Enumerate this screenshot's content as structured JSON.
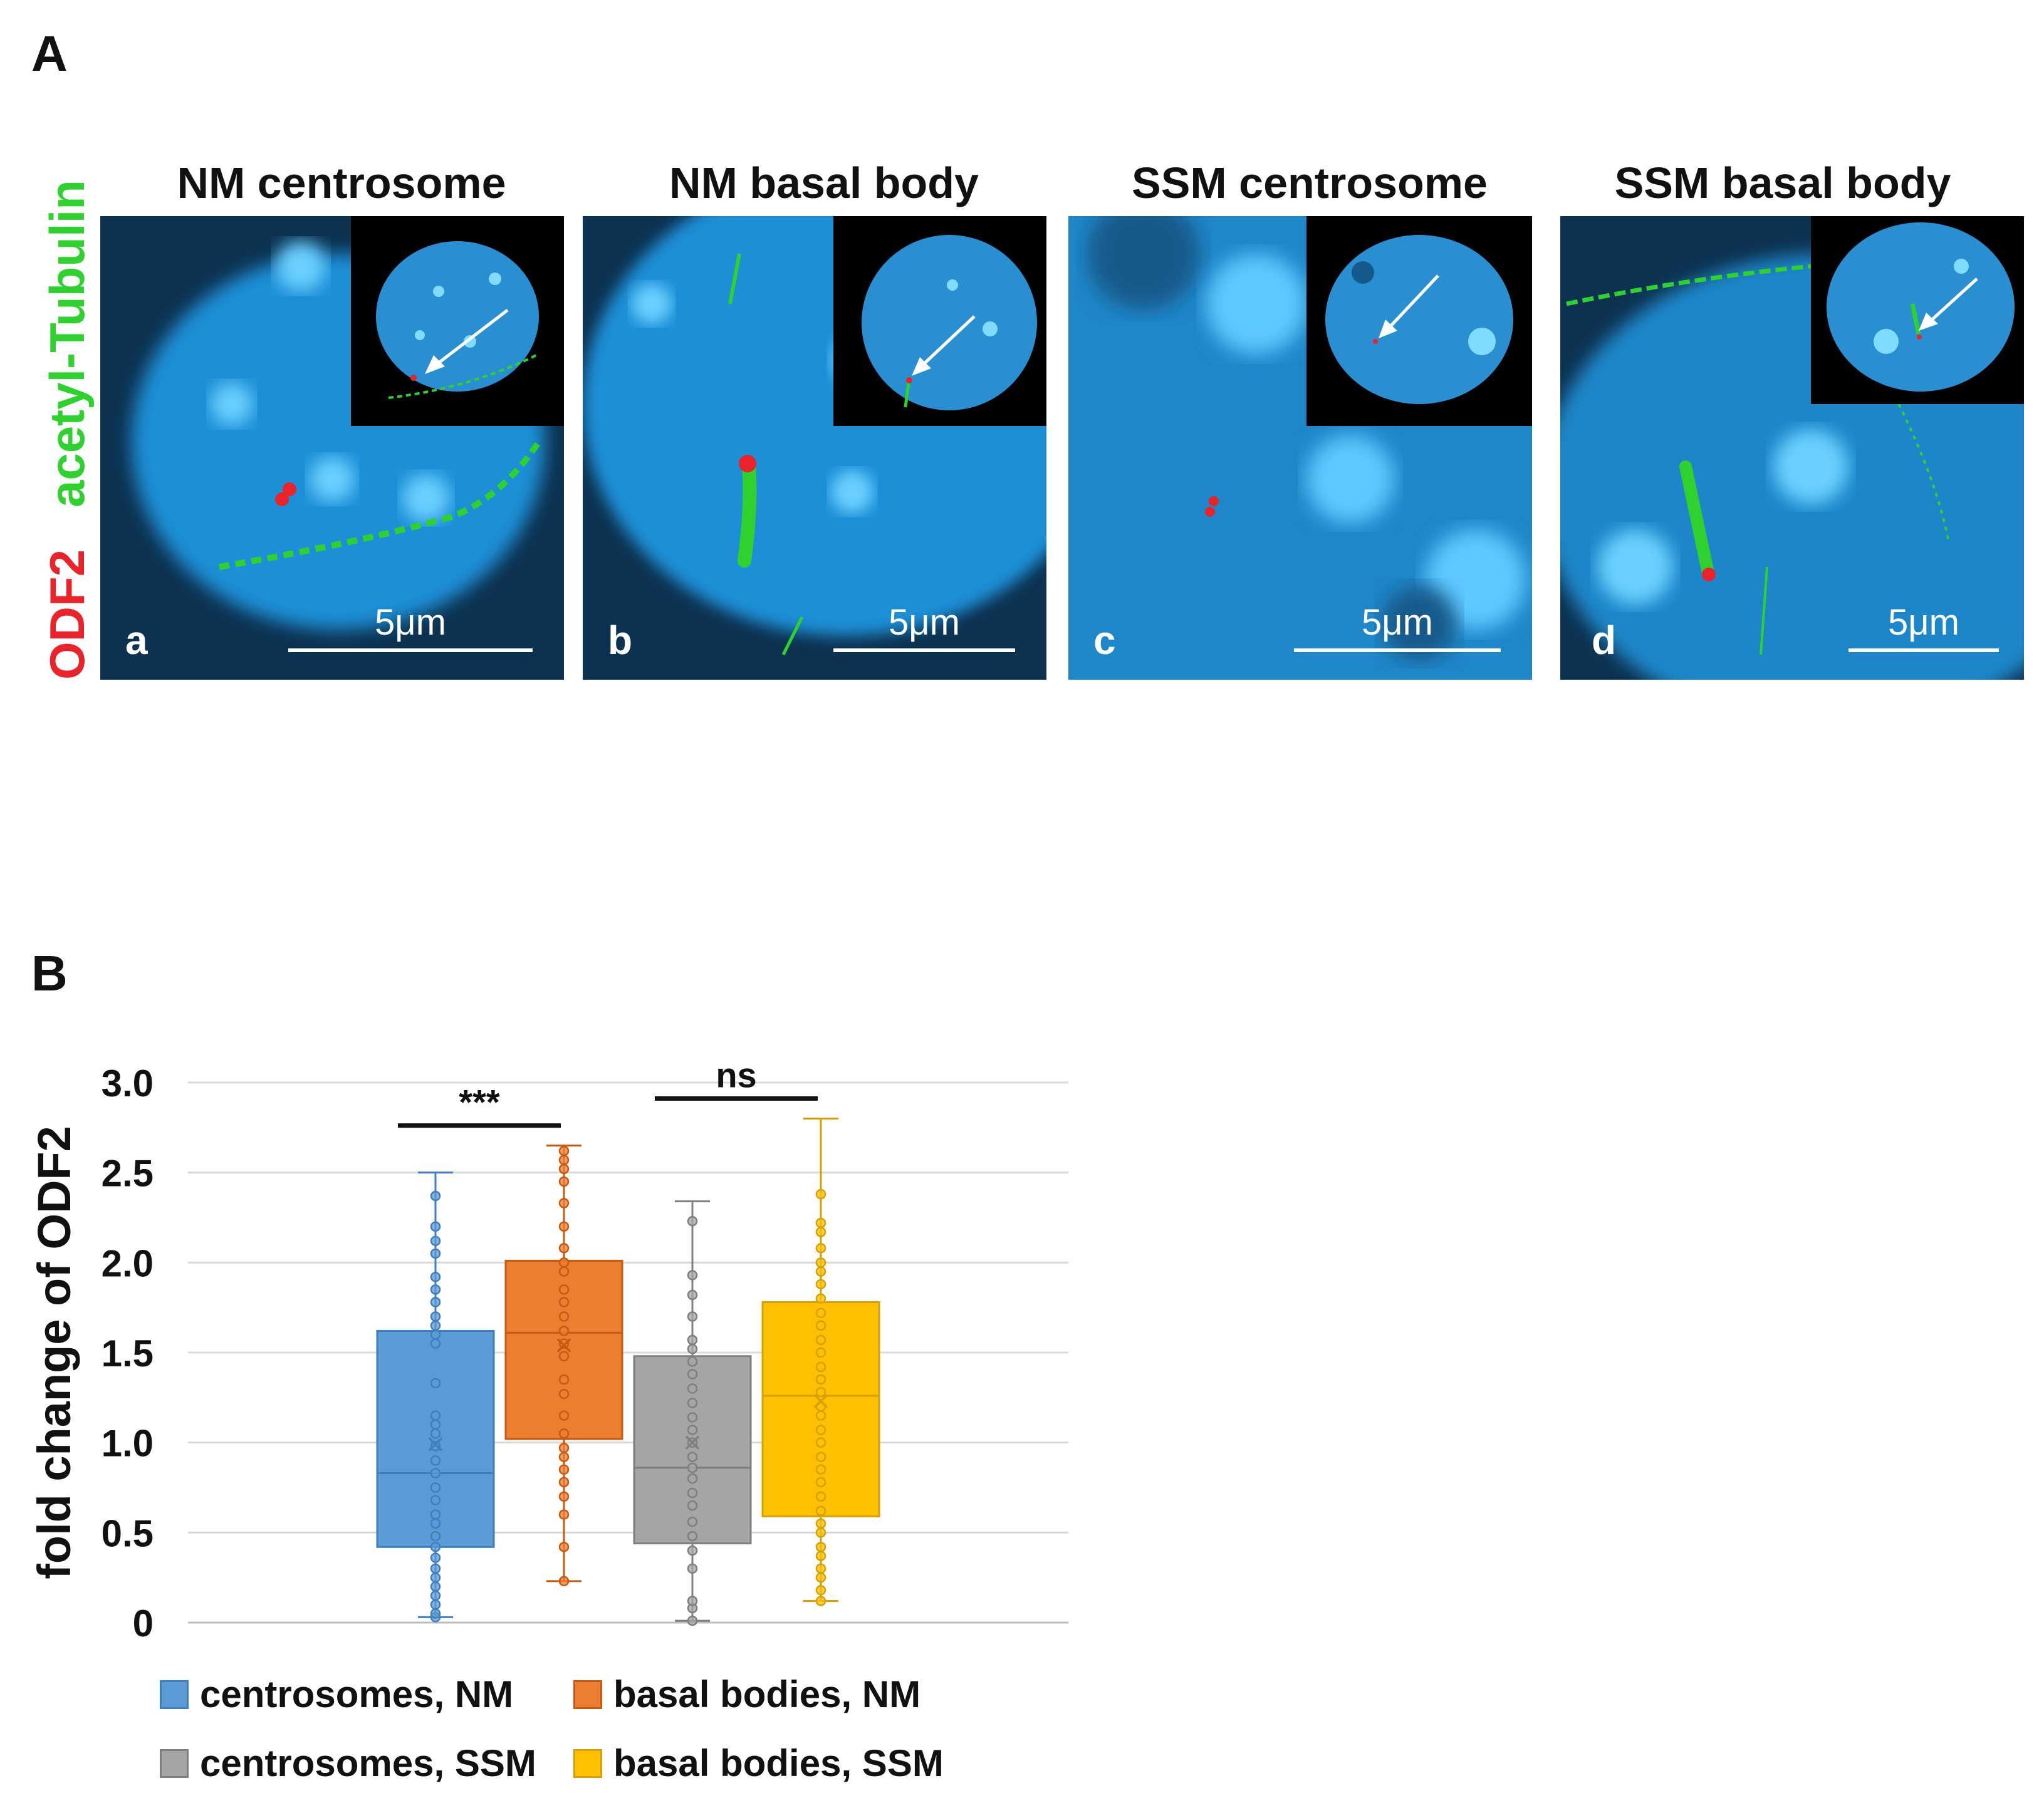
{
  "figure": {
    "panel_a_letter": "A",
    "panel_b_letter": "B",
    "stain_red": "ODF2",
    "stain_green": "acetyl-Tubulin",
    "colors": {
      "red": "#e8232a",
      "green": "#2fd12f",
      "nucleus": "#1f8fd6"
    }
  },
  "images": [
    {
      "title": "NM centrosome",
      "letter": "a",
      "scale": "5μm"
    },
    {
      "title": "NM basal body",
      "letter": "b",
      "scale": "5μm"
    },
    {
      "title": "SSM centrosome",
      "letter": "c",
      "scale": "5μm"
    },
    {
      "title": "SSM basal body",
      "letter": "d",
      "scale": "5μm"
    }
  ],
  "chart_data": {
    "type": "box",
    "ylabel": "fold change of ODF2",
    "ylim": [
      0,
      3.0
    ],
    "yticks": [
      "0",
      "0.5",
      "1.0",
      "1.5",
      "2.0",
      "2.5",
      "3.0"
    ],
    "grid": true,
    "legend_position": "bottom",
    "series": [
      {
        "name": "centrosomes, NM",
        "color": "#5b9bd5",
        "stroke": "#3f7fbf",
        "whisker_low": 0.03,
        "q1": 0.42,
        "median": 0.83,
        "q3": 1.62,
        "whisker_high": 2.5,
        "mean": 0.99,
        "points": [
          0.03,
          0.05,
          0.1,
          0.15,
          0.2,
          0.25,
          0.3,
          0.36,
          0.42,
          0.48,
          0.55,
          0.6,
          0.68,
          0.75,
          0.83,
          0.9,
          0.98,
          1.05,
          1.1,
          1.15,
          1.33,
          1.55,
          1.6,
          1.65,
          1.7,
          1.78,
          1.85,
          1.92,
          2.05,
          2.12,
          2.2,
          2.37
        ]
      },
      {
        "name": "basal bodies, NM",
        "color": "#ed7d31",
        "stroke": "#c55a11",
        "whisker_low": 0.23,
        "q1": 1.02,
        "median": 1.61,
        "q3": 2.01,
        "whisker_high": 2.65,
        "mean": 1.54,
        "points": [
          0.23,
          0.42,
          0.6,
          0.7,
          0.78,
          0.85,
          0.92,
          0.97,
          1.05,
          1.15,
          1.27,
          1.35,
          1.48,
          1.55,
          1.62,
          1.7,
          1.78,
          1.85,
          1.95,
          2.0,
          2.08,
          2.2,
          2.33,
          2.45,
          2.52,
          2.57,
          2.62
        ]
      },
      {
        "name": "centrosomes, SSM",
        "color": "#a5a5a5",
        "stroke": "#7f7f7f",
        "whisker_low": 0.01,
        "q1": 0.44,
        "median": 0.86,
        "q3": 1.48,
        "whisker_high": 2.34,
        "mean": 1.0,
        "points": [
          0.01,
          0.08,
          0.12,
          0.3,
          0.4,
          0.48,
          0.56,
          0.65,
          0.72,
          0.8,
          0.86,
          0.92,
          1.0,
          1.07,
          1.14,
          1.22,
          1.3,
          1.38,
          1.45,
          1.52,
          1.57,
          1.7,
          1.82,
          1.93,
          2.23
        ]
      },
      {
        "name": "basal bodies, SSM",
        "color": "#ffc000",
        "stroke": "#d6a000",
        "whisker_low": 0.12,
        "q1": 0.59,
        "median": 1.26,
        "q3": 1.78,
        "whisker_high": 2.8,
        "mean": 1.23,
        "points": [
          0.12,
          0.18,
          0.25,
          0.3,
          0.37,
          0.42,
          0.5,
          0.55,
          0.62,
          0.7,
          0.78,
          0.85,
          0.92,
          1.0,
          1.07,
          1.15,
          1.2,
          1.28,
          1.35,
          1.42,
          1.5,
          1.57,
          1.65,
          1.72,
          1.8,
          1.88,
          1.95,
          2.0,
          2.08,
          2.17,
          2.22,
          2.38
        ]
      }
    ],
    "significance": [
      {
        "label": "***",
        "pair": [
          0,
          1
        ]
      },
      {
        "label": "ns",
        "pair": [
          2,
          3
        ]
      }
    ]
  }
}
